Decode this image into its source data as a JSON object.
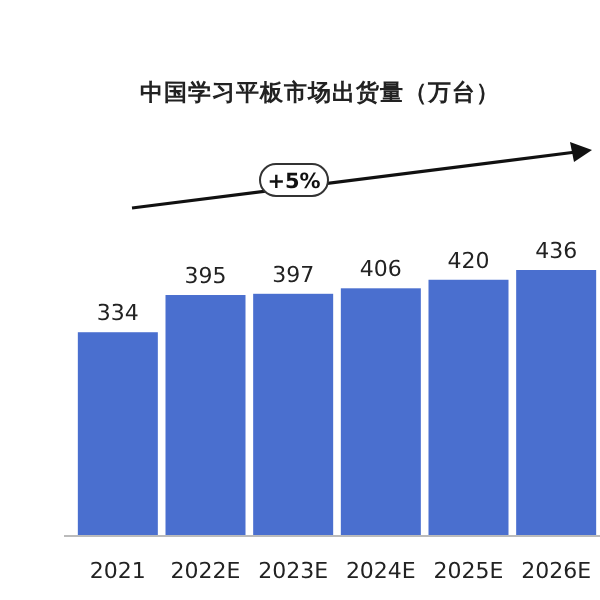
{
  "chart_data": {
    "type": "bar",
    "title": "中国学习平板市场出货量（万台）",
    "categories": [
      "2021",
      "2022E",
      "2023E",
      "2024E",
      "2025E",
      "2026E"
    ],
    "values": [
      334,
      395,
      397,
      406,
      420,
      436
    ],
    "color": "#4a6fcf",
    "data_labels": true,
    "annotations": [
      "+5%"
    ]
  }
}
